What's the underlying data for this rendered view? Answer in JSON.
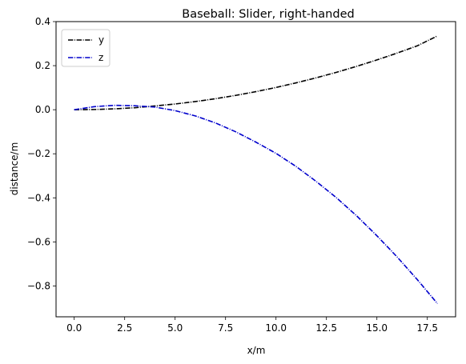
{
  "chart_data": {
    "type": "line",
    "title": "Baseball: Slider, right-handed",
    "xlabel": "x/m",
    "ylabel": "distance/m",
    "xlim": [
      -0.9,
      18.9
    ],
    "ylim": [
      -0.94,
      0.4
    ],
    "x_ticks": [
      0.0,
      2.5,
      5.0,
      7.5,
      10.0,
      12.5,
      15.0,
      17.5
    ],
    "x_tick_labels": [
      "0.0",
      "2.5",
      "5.0",
      "7.5",
      "10.0",
      "12.5",
      "15.0",
      "17.5"
    ],
    "y_ticks": [
      0.4,
      0.2,
      0.0,
      -0.2,
      -0.4,
      -0.6,
      -0.8
    ],
    "y_tick_labels": [
      "0.4",
      "0.2",
      "0.0",
      "−0.2",
      "−0.4",
      "−0.6",
      "−0.8"
    ],
    "grid": false,
    "legend_position": "top-left",
    "x": [
      0,
      1,
      2,
      3,
      4,
      5,
      6,
      7,
      8,
      9,
      10,
      11,
      12,
      13,
      14,
      15,
      16,
      17,
      18
    ],
    "series": [
      {
        "name": "y",
        "color": "#000000",
        "linestyle": "dashdot",
        "values": [
          0.0,
          0.001,
          0.004,
          0.009,
          0.017,
          0.026,
          0.037,
          0.05,
          0.065,
          0.082,
          0.101,
          0.122,
          0.145,
          0.17,
          0.197,
          0.226,
          0.257,
          0.29,
          0.335
        ]
      },
      {
        "name": "z",
        "color": "#0000cc",
        "linestyle": "dashdot",
        "values": [
          0.0,
          0.014,
          0.02,
          0.018,
          0.012,
          -0.004,
          -0.028,
          -0.06,
          -0.1,
          -0.147,
          -0.198,
          -0.258,
          -0.326,
          -0.4,
          -0.482,
          -0.572,
          -0.668,
          -0.771,
          -0.88
        ]
      }
    ]
  }
}
